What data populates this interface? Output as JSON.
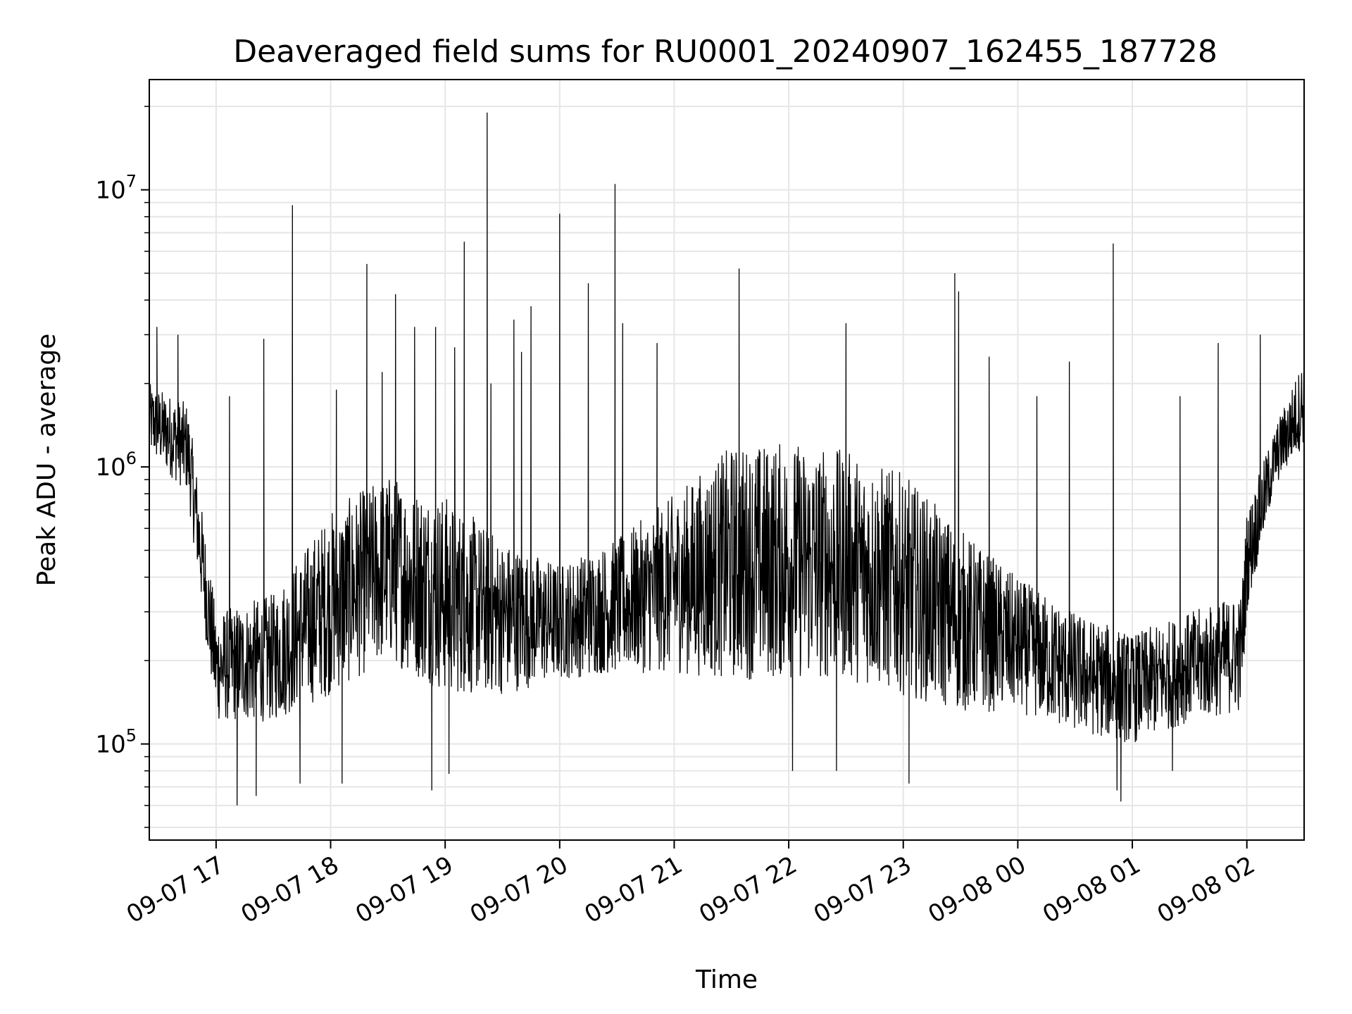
{
  "chart_data": {
    "type": "line",
    "title": "Deaveraged field sums for RU0001_20240907_162455_187728",
    "xlabel": "Time",
    "ylabel": "Peak ADU - average",
    "x_range": [
      "2024-09-07 16:25",
      "2024-09-08 02:30"
    ],
    "ylim": [
      45000,
      25000000
    ],
    "y_scale": "log",
    "grid": "on (major and minor)",
    "legend": "none",
    "x_ticks": [
      {
        "value": "2024-09-07 17:00",
        "label": "09-07 17"
      },
      {
        "value": "2024-09-07 18:00",
        "label": "09-07 18"
      },
      {
        "value": "2024-09-07 19:00",
        "label": "09-07 19"
      },
      {
        "value": "2024-09-07 20:00",
        "label": "09-07 20"
      },
      {
        "value": "2024-09-07 21:00",
        "label": "09-07 21"
      },
      {
        "value": "2024-09-07 22:00",
        "label": "09-07 22"
      },
      {
        "value": "2024-09-07 23:00",
        "label": "09-07 23"
      },
      {
        "value": "2024-09-08 00:00",
        "label": "09-08 00"
      },
      {
        "value": "2024-09-08 01:00",
        "label": "09-08 01"
      },
      {
        "value": "2024-09-08 02:00",
        "label": "09-08 02"
      }
    ],
    "y_ticks": [
      {
        "value": 100000,
        "base": "10",
        "exp": "5"
      },
      {
        "value": 1000000,
        "base": "10",
        "exp": "6"
      },
      {
        "value": 10000000,
        "base": "10",
        "exp": "7"
      }
    ],
    "line_color": "#000000",
    "grid_color": "#e6e6e6",
    "envelope": {
      "x": [
        "2024-09-07 16:25",
        "2024-09-07 16:45",
        "2024-09-07 17:00",
        "2024-09-07 17:30",
        "2024-09-07 18:00",
        "2024-09-07 18:30",
        "2024-09-07 19:00",
        "2024-09-07 19:30",
        "2024-09-07 20:00",
        "2024-09-07 20:30",
        "2024-09-07 21:00",
        "2024-09-07 21:30",
        "2024-09-07 22:00",
        "2024-09-07 22:30",
        "2024-09-07 23:00",
        "2024-09-07 23:30",
        "2024-09-08 00:00",
        "2024-09-08 00:30",
        "2024-09-08 01:00",
        "2024-09-08 01:30",
        "2024-09-08 01:57",
        "2024-09-08 02:00",
        "2024-09-08 02:15",
        "2024-09-08 02:30"
      ],
      "low": [
        1100000,
        800000,
        120000,
        120000,
        150000,
        200000,
        150000,
        150000,
        170000,
        180000,
        180000,
        170000,
        170000,
        170000,
        150000,
        130000,
        130000,
        110000,
        100000,
        120000,
        130000,
        300000,
        850000,
        1200000
      ],
      "high": [
        2000000,
        1700000,
        300000,
        350000,
        700000,
        950000,
        800000,
        550000,
        450000,
        550000,
        800000,
        1200000,
        1250000,
        1150000,
        950000,
        600000,
        400000,
        300000,
        250000,
        300000,
        350000,
        700000,
        1400000,
        2500000
      ]
    },
    "spikes": [
      {
        "x": "2024-09-07 16:29",
        "y": 3200000
      },
      {
        "x": "2024-09-07 16:40",
        "y": 3000000
      },
      {
        "x": "2024-09-07 17:07",
        "y": 1800000
      },
      {
        "x": "2024-09-07 17:25",
        "y": 2900000
      },
      {
        "x": "2024-09-07 17:40",
        "y": 8800000
      },
      {
        "x": "2024-09-07 18:03",
        "y": 1900000
      },
      {
        "x": "2024-09-07 18:19",
        "y": 5400000
      },
      {
        "x": "2024-09-07 18:27",
        "y": 2200000
      },
      {
        "x": "2024-09-07 18:34",
        "y": 4200000
      },
      {
        "x": "2024-09-07 18:44",
        "y": 3200000
      },
      {
        "x": "2024-09-07 18:55",
        "y": 3200000
      },
      {
        "x": "2024-09-07 19:05",
        "y": 2700000
      },
      {
        "x": "2024-09-07 19:10",
        "y": 6500000
      },
      {
        "x": "2024-09-07 19:22",
        "y": 19000000
      },
      {
        "x": "2024-09-07 19:24",
        "y": 2000000
      },
      {
        "x": "2024-09-07 19:36",
        "y": 3400000
      },
      {
        "x": "2024-09-07 19:40",
        "y": 2600000
      },
      {
        "x": "2024-09-07 19:45",
        "y": 3800000
      },
      {
        "x": "2024-09-07 20:00",
        "y": 8200000
      },
      {
        "x": "2024-09-07 20:15",
        "y": 4600000
      },
      {
        "x": "2024-09-07 20:29",
        "y": 10500000
      },
      {
        "x": "2024-09-07 20:33",
        "y": 3300000
      },
      {
        "x": "2024-09-07 20:51",
        "y": 2800000
      },
      {
        "x": "2024-09-07 21:34",
        "y": 5200000
      },
      {
        "x": "2024-09-07 22:30",
        "y": 3300000
      },
      {
        "x": "2024-09-07 23:27",
        "y": 5000000
      },
      {
        "x": "2024-09-07 23:29",
        "y": 4300000
      },
      {
        "x": "2024-09-07 23:45",
        "y": 2500000
      },
      {
        "x": "2024-09-08 00:10",
        "y": 1800000
      },
      {
        "x": "2024-09-08 00:27",
        "y": 2400000
      },
      {
        "x": "2024-09-08 00:50",
        "y": 6400000
      },
      {
        "x": "2024-09-08 01:25",
        "y": 1800000
      },
      {
        "x": "2024-09-08 01:45",
        "y": 2800000
      },
      {
        "x": "2024-09-08 02:07",
        "y": 3000000
      },
      {
        "x": "2024-09-08 02:30",
        "y": 3100000
      }
    ],
    "dips": [
      {
        "x": "2024-09-07 17:11",
        "y": 60000
      },
      {
        "x": "2024-09-07 17:21",
        "y": 65000
      },
      {
        "x": "2024-09-07 17:44",
        "y": 72000
      },
      {
        "x": "2024-09-07 18:06",
        "y": 72000
      },
      {
        "x": "2024-09-07 18:53",
        "y": 68000
      },
      {
        "x": "2024-09-07 19:02",
        "y": 78000
      },
      {
        "x": "2024-09-07 22:02",
        "y": 80000
      },
      {
        "x": "2024-09-07 22:25",
        "y": 80000
      },
      {
        "x": "2024-09-07 23:03",
        "y": 72000
      },
      {
        "x": "2024-09-08 00:54",
        "y": 62000
      },
      {
        "x": "2024-09-08 00:52",
        "y": 68000
      },
      {
        "x": "2024-09-08 01:21",
        "y": 80000
      }
    ]
  }
}
